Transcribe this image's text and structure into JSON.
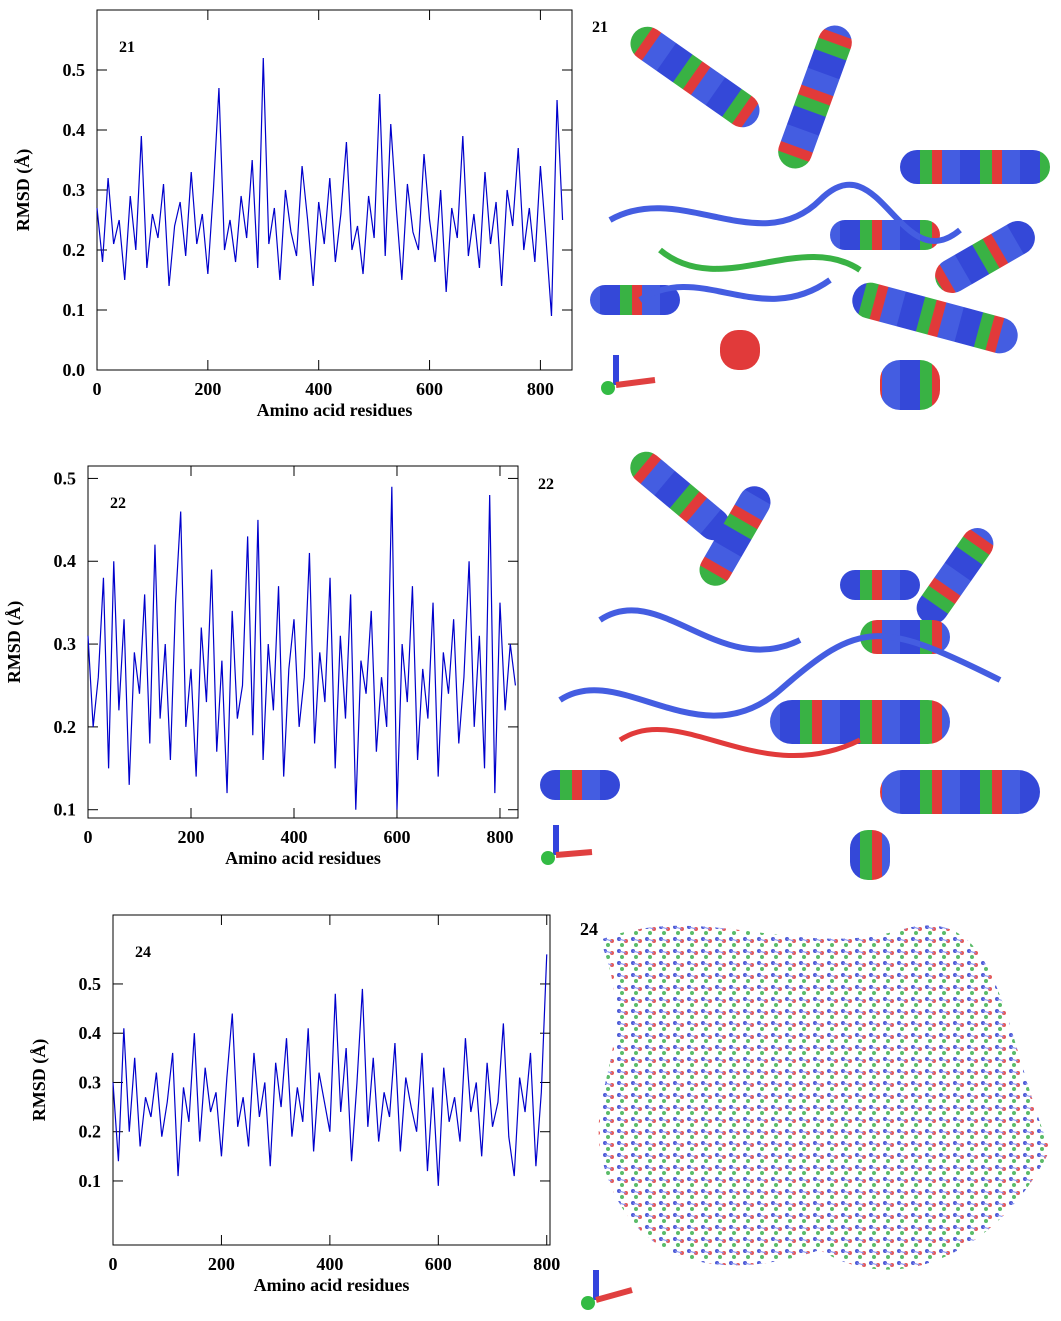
{
  "chart_data": [
    {
      "type": "line",
      "annotation": "21",
      "x_label": "Amino acid residues",
      "y_label": "RMSD (Å)",
      "color": "#0000cc",
      "x": [
        0,
        10,
        20,
        30,
        40,
        50,
        60,
        70,
        80,
        90,
        100,
        110,
        120,
        130,
        140,
        150,
        160,
        170,
        180,
        190,
        200,
        210,
        220,
        230,
        240,
        250,
        260,
        270,
        280,
        290,
        300,
        310,
        320,
        330,
        340,
        350,
        360,
        370,
        380,
        390,
        400,
        410,
        420,
        430,
        440,
        450,
        460,
        470,
        480,
        490,
        500,
        510,
        520,
        530,
        540,
        550,
        560,
        570,
        580,
        590,
        600,
        610,
        620,
        630,
        640,
        650,
        660,
        670,
        680,
        690,
        700,
        710,
        720,
        730,
        740,
        750,
        760,
        770,
        780,
        790,
        800,
        810,
        820,
        830,
        840
      ],
      "values": [
        0.27,
        0.18,
        0.32,
        0.21,
        0.25,
        0.15,
        0.29,
        0.2,
        0.39,
        0.17,
        0.26,
        0.22,
        0.31,
        0.14,
        0.24,
        0.28,
        0.19,
        0.33,
        0.21,
        0.26,
        0.16,
        0.3,
        0.47,
        0.2,
        0.25,
        0.18,
        0.29,
        0.22,
        0.35,
        0.17,
        0.52,
        0.21,
        0.27,
        0.15,
        0.3,
        0.23,
        0.19,
        0.34,
        0.25,
        0.14,
        0.28,
        0.21,
        0.32,
        0.18,
        0.26,
        0.38,
        0.2,
        0.24,
        0.16,
        0.29,
        0.22,
        0.46,
        0.19,
        0.41,
        0.27,
        0.15,
        0.31,
        0.23,
        0.2,
        0.36,
        0.25,
        0.18,
        0.3,
        0.13,
        0.27,
        0.22,
        0.39,
        0.19,
        0.26,
        0.17,
        0.33,
        0.21,
        0.28,
        0.14,
        0.3,
        0.24,
        0.37,
        0.2,
        0.27,
        0.18,
        0.34,
        0.22,
        0.09,
        0.45,
        0.25
      ],
      "xlim": [
        0,
        857
      ],
      "xticks": [
        0,
        200,
        400,
        600,
        800
      ],
      "ylim": [
        0,
        0.6
      ],
      "yticks": [
        {
          "value": 0,
          "label": "0.0"
        },
        0.1,
        0.2,
        0.3,
        0.4,
        0.5
      ]
    },
    {
      "type": "line",
      "annotation": "22",
      "x_label": "Amino acid residues",
      "y_label": "RMSD (Å)",
      "color": "#0000cc",
      "x": [
        0,
        10,
        20,
        30,
        40,
        50,
        60,
        70,
        80,
        90,
        100,
        110,
        120,
        130,
        140,
        150,
        160,
        170,
        180,
        190,
        200,
        210,
        220,
        230,
        240,
        250,
        260,
        270,
        280,
        290,
        300,
        310,
        320,
        330,
        340,
        350,
        360,
        370,
        380,
        390,
        400,
        410,
        420,
        430,
        440,
        450,
        460,
        470,
        480,
        490,
        500,
        510,
        520,
        530,
        540,
        550,
        560,
        570,
        580,
        590,
        600,
        610,
        620,
        630,
        640,
        650,
        660,
        670,
        680,
        690,
        700,
        710,
        720,
        730,
        740,
        750,
        760,
        770,
        780,
        790,
        800,
        810,
        820,
        830
      ],
      "values": [
        0.31,
        0.2,
        0.26,
        0.38,
        0.15,
        0.4,
        0.22,
        0.33,
        0.13,
        0.29,
        0.24,
        0.36,
        0.18,
        0.42,
        0.21,
        0.3,
        0.16,
        0.35,
        0.46,
        0.2,
        0.27,
        0.14,
        0.32,
        0.23,
        0.39,
        0.17,
        0.28,
        0.12,
        0.34,
        0.21,
        0.25,
        0.43,
        0.19,
        0.45,
        0.16,
        0.3,
        0.22,
        0.37,
        0.14,
        0.27,
        0.33,
        0.2,
        0.26,
        0.41,
        0.18,
        0.29,
        0.23,
        0.38,
        0.15,
        0.31,
        0.21,
        0.36,
        0.1,
        0.28,
        0.24,
        0.34,
        0.17,
        0.26,
        0.2,
        0.49,
        0.1,
        0.3,
        0.23,
        0.37,
        0.16,
        0.27,
        0.21,
        0.35,
        0.14,
        0.29,
        0.24,
        0.33,
        0.18,
        0.26,
        0.4,
        0.2,
        0.31,
        0.15,
        0.48,
        0.12,
        0.35,
        0.22,
        0.3,
        0.25
      ],
      "xlim": [
        0,
        835
      ],
      "xticks": [
        0,
        200,
        400,
        600,
        800
      ],
      "ylim": [
        0.09,
        0.515
      ],
      "yticks": [
        0.1,
        0.2,
        0.3,
        0.4,
        0.5
      ]
    },
    {
      "type": "line",
      "annotation": "24",
      "x_label": "Amino acid residues",
      "y_label": "RMSD (Å)",
      "color": "#0000cc",
      "x": [
        0,
        10,
        20,
        30,
        40,
        50,
        60,
        70,
        80,
        90,
        100,
        110,
        120,
        130,
        140,
        150,
        160,
        170,
        180,
        190,
        200,
        210,
        220,
        230,
        240,
        250,
        260,
        270,
        280,
        290,
        300,
        310,
        320,
        330,
        340,
        350,
        360,
        370,
        380,
        390,
        400,
        410,
        420,
        430,
        440,
        450,
        460,
        470,
        480,
        490,
        500,
        510,
        520,
        530,
        540,
        550,
        560,
        570,
        580,
        590,
        600,
        610,
        620,
        630,
        640,
        650,
        660,
        670,
        680,
        690,
        700,
        710,
        720,
        730,
        740,
        750,
        760,
        770,
        780,
        790,
        800
      ],
      "values": [
        0.3,
        0.14,
        0.41,
        0.2,
        0.35,
        0.17,
        0.27,
        0.23,
        0.32,
        0.19,
        0.26,
        0.36,
        0.11,
        0.29,
        0.22,
        0.4,
        0.18,
        0.33,
        0.24,
        0.28,
        0.15,
        0.31,
        0.44,
        0.21,
        0.27,
        0.17,
        0.36,
        0.23,
        0.3,
        0.13,
        0.34,
        0.25,
        0.39,
        0.19,
        0.29,
        0.22,
        0.41,
        0.16,
        0.32,
        0.26,
        0.2,
        0.48,
        0.24,
        0.37,
        0.14,
        0.3,
        0.49,
        0.21,
        0.35,
        0.18,
        0.28,
        0.23,
        0.38,
        0.16,
        0.31,
        0.25,
        0.2,
        0.36,
        0.12,
        0.29,
        0.09,
        0.33,
        0.22,
        0.27,
        0.18,
        0.39,
        0.24,
        0.3,
        0.15,
        0.34,
        0.21,
        0.26,
        0.42,
        0.19,
        0.11,
        0.31,
        0.24,
        0.36,
        0.13,
        0.28,
        0.56
      ],
      "xlim": [
        0,
        806
      ],
      "xticks": [
        0,
        200,
        400,
        600,
        800
      ],
      "ylim": [
        -0.03,
        0.64
      ],
      "yticks": [
        0.1,
        0.2,
        0.3,
        0.4,
        0.5
      ]
    }
  ],
  "images": [
    {
      "label": "21"
    },
    {
      "label": "22"
    },
    {
      "label": "24"
    }
  ]
}
